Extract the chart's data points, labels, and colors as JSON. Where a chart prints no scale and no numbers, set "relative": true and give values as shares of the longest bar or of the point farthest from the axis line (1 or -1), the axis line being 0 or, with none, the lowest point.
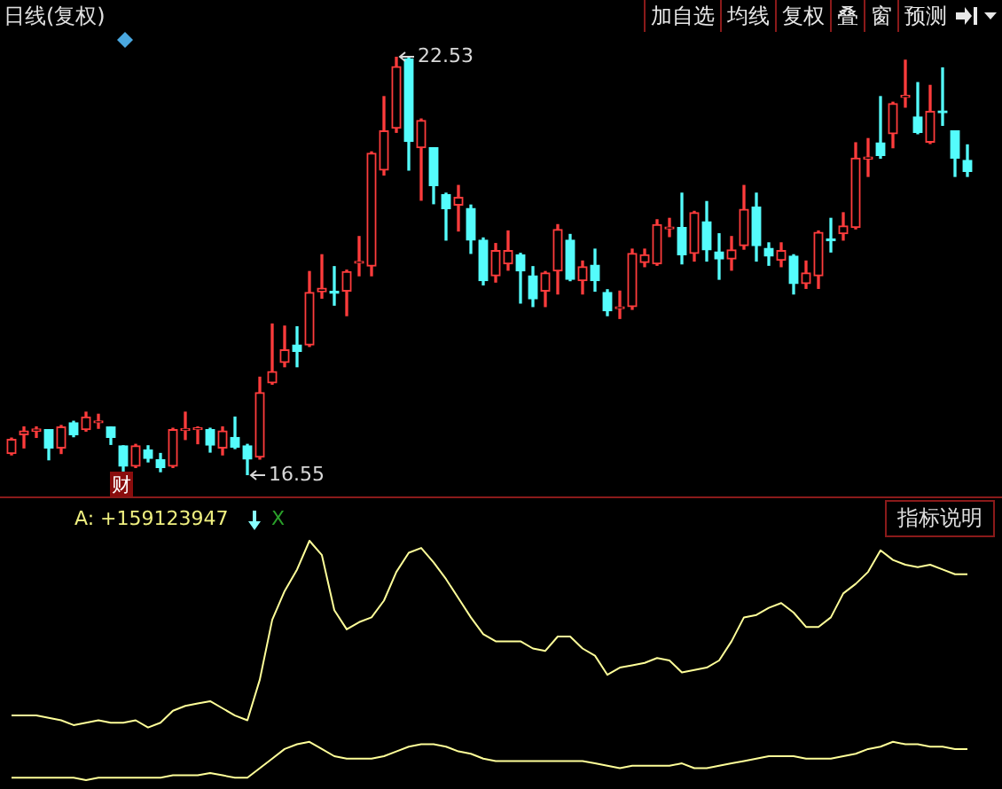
{
  "chart_data": [
    {
      "type": "candlestick",
      "title": "日线(复权)",
      "categories": [
        null,
        null,
        null,
        null,
        null,
        null,
        null,
        null,
        null,
        null,
        null,
        null,
        null,
        null,
        null,
        null,
        null,
        null,
        null,
        null,
        null,
        null,
        null,
        null,
        null,
        null,
        null,
        null,
        null,
        null,
        null,
        null,
        null,
        null,
        null,
        null,
        null,
        null,
        null,
        null,
        null,
        null,
        null,
        null,
        null,
        null,
        null,
        null,
        null,
        null,
        null,
        null,
        null,
        null,
        null,
        null,
        null,
        null,
        null,
        null,
        null,
        null,
        null,
        null,
        null,
        null,
        null,
        null,
        null,
        null,
        null,
        null,
        null,
        null,
        null,
        null,
        null,
        null
      ],
      "ohlc": [
        [
          16.86,
          17.08,
          16.84,
          17.06
        ],
        [
          17.13,
          17.24,
          16.94,
          17.18
        ],
        [
          17.18,
          17.24,
          17.09,
          17.21
        ],
        [
          17.2,
          17.2,
          16.77,
          16.94
        ],
        [
          16.94,
          17.26,
          16.86,
          17.24
        ],
        [
          17.3,
          17.32,
          17.1,
          17.13
        ],
        [
          17.2,
          17.45,
          17.18,
          17.38
        ],
        [
          17.3,
          17.42,
          17.22,
          17.32
        ],
        [
          17.24,
          17.24,
          16.99,
          17.09
        ],
        [
          16.97,
          16.97,
          16.61,
          16.68
        ],
        [
          16.68,
          16.99,
          16.66,
          16.97
        ],
        [
          16.91,
          16.97,
          16.74,
          16.79
        ],
        [
          16.77,
          16.86,
          16.6,
          16.66
        ],
        [
          16.68,
          17.22,
          16.66,
          17.2
        ],
        [
          17.19,
          17.45,
          17.06,
          17.21
        ],
        [
          17.2,
          17.24,
          17.0,
          17.21
        ],
        [
          17.2,
          17.22,
          16.88,
          16.98
        ],
        [
          16.94,
          17.24,
          16.84,
          17.18
        ],
        [
          17.09,
          17.38,
          16.93,
          16.95
        ],
        [
          16.97,
          16.99,
          16.55,
          16.78
        ],
        [
          16.81,
          17.95,
          16.78,
          17.73
        ],
        [
          17.87,
          18.71,
          17.85,
          18.03
        ],
        [
          18.16,
          18.68,
          18.1,
          18.34
        ],
        [
          18.41,
          18.67,
          18.1,
          18.32
        ],
        [
          18.41,
          19.46,
          18.39,
          19.16
        ],
        [
          19.17,
          19.7,
          19.08,
          19.22
        ],
        [
          19.17,
          19.53,
          18.98,
          19.15
        ],
        [
          19.18,
          19.48,
          18.83,
          19.46
        ],
        [
          19.58,
          19.96,
          19.4,
          19.6
        ],
        [
          19.54,
          21.17,
          19.4,
          21.15
        ],
        [
          20.91,
          21.96,
          20.84,
          21.47
        ],
        [
          21.51,
          22.53,
          21.45,
          22.39
        ],
        [
          22.5,
          22.52,
          20.91,
          21.32
        ],
        [
          21.23,
          21.64,
          20.48,
          21.62
        ],
        [
          21.23,
          21.23,
          20.43,
          20.69
        ],
        [
          20.56,
          20.58,
          19.91,
          20.36
        ],
        [
          20.41,
          20.69,
          20.04,
          20.52
        ],
        [
          20.36,
          20.41,
          19.72,
          19.91
        ],
        [
          19.91,
          19.94,
          19.27,
          19.33
        ],
        [
          19.4,
          19.86,
          19.31,
          19.76
        ],
        [
          19.57,
          20.04,
          19.48,
          19.76
        ],
        [
          19.7,
          19.72,
          19.01,
          19.47
        ],
        [
          19.4,
          19.53,
          18.96,
          19.07
        ],
        [
          19.18,
          19.46,
          18.96,
          19.44
        ],
        [
          19.47,
          20.13,
          19.14,
          20.06
        ],
        [
          19.91,
          19.99,
          19.33,
          19.35
        ],
        [
          19.33,
          19.61,
          19.14,
          19.53
        ],
        [
          19.55,
          19.78,
          19.18,
          19.33
        ],
        [
          19.16,
          19.2,
          18.83,
          18.9
        ],
        [
          18.93,
          19.18,
          18.79,
          18.95
        ],
        [
          18.96,
          19.78,
          18.92,
          19.72
        ],
        [
          19.59,
          19.78,
          19.53,
          19.7
        ],
        [
          19.57,
          20.2,
          19.55,
          20.13
        ],
        [
          20.07,
          20.22,
          19.96,
          20.09
        ],
        [
          20.09,
          20.58,
          19.57,
          19.7
        ],
        [
          19.72,
          20.32,
          19.61,
          20.3
        ],
        [
          20.17,
          20.46,
          19.61,
          19.77
        ],
        [
          19.74,
          20.0,
          19.35,
          19.64
        ],
        [
          19.64,
          19.96,
          19.48,
          19.77
        ],
        [
          19.83,
          20.69,
          19.78,
          20.35
        ],
        [
          20.38,
          20.58,
          19.61,
          19.83
        ],
        [
          19.79,
          19.87,
          19.55,
          19.68
        ],
        [
          19.62,
          19.87,
          19.53,
          19.76
        ],
        [
          19.68,
          19.7,
          19.14,
          19.29
        ],
        [
          19.29,
          19.61,
          19.22,
          19.44
        ],
        [
          19.4,
          20.04,
          19.22,
          20.02
        ],
        [
          19.92,
          20.22,
          19.74,
          19.9
        ],
        [
          20.0,
          20.3,
          19.91,
          20.11
        ],
        [
          20.09,
          21.3,
          20.07,
          21.08
        ],
        [
          21.07,
          21.36,
          20.82,
          21.08
        ],
        [
          21.3,
          21.96,
          21.08,
          21.12
        ],
        [
          21.43,
          21.88,
          21.23,
          21.86
        ],
        [
          21.95,
          22.48,
          21.81,
          21.96
        ],
        [
          21.67,
          22.16,
          21.43,
          21.45
        ],
        [
          21.31,
          22.12,
          21.29,
          21.75
        ],
        [
          21.75,
          22.37,
          21.55,
          21.73
        ],
        [
          21.47,
          21.47,
          20.82,
          21.08
        ],
        [
          21.05,
          21.27,
          20.82,
          20.89
        ]
      ],
      "colors": [
        "#ff3c3c",
        "#ff3c3c",
        "#ff3c3c",
        "#54fcfc",
        "#ff3c3c",
        "#54fcfc",
        "#ff3c3c",
        "#ff3c3c",
        "#54fcfc",
        "#54fcfc",
        "#ff3c3c",
        "#54fcfc",
        "#54fcfc",
        "#ff3c3c",
        "#ff3c3c",
        "#ff3c3c",
        "#54fcfc",
        "#ff3c3c",
        "#54fcfc",
        "#54fcfc",
        "#ff3c3c",
        "#ff3c3c",
        "#ff3c3c",
        "#54fcfc",
        "#ff3c3c",
        "#ff3c3c",
        "#54fcfc",
        "#ff3c3c",
        "#ff3c3c",
        "#ff3c3c",
        "#ff3c3c",
        "#ff3c3c",
        "#54fcfc",
        "#ff3c3c",
        "#54fcfc",
        "#54fcfc",
        "#ff3c3c",
        "#54fcfc",
        "#54fcfc",
        "#ff3c3c",
        "#ff3c3c",
        "#54fcfc",
        "#54fcfc",
        "#ff3c3c",
        "#ff3c3c",
        "#54fcfc",
        "#ff3c3c",
        "#54fcfc",
        "#54fcfc",
        "#ff3c3c",
        "#ff3c3c",
        "#ff3c3c",
        "#ff3c3c",
        "#ff3c3c",
        "#54fcfc",
        "#ff3c3c",
        "#54fcfc",
        "#54fcfc",
        "#ff3c3c",
        "#ff3c3c",
        "#54fcfc",
        "#54fcfc",
        "#ff3c3c",
        "#54fcfc",
        "#ff3c3c",
        "#ff3c3c",
        "#54fcfc",
        "#ff3c3c",
        "#ff3c3c",
        "#ff3c3c",
        "#54fcfc",
        "#ff3c3c",
        "#ff3c3c",
        "#54fcfc",
        "#ff3c3c",
        "#54fcfc",
        "#54fcfc",
        "#54fcfc"
      ],
      "annotations": [
        "22.53",
        "16.55",
        "财",
        "加自选",
        "均线",
        "复权",
        "叠",
        "窗",
        "预测"
      ]
    },
    {
      "type": "line",
      "title": "A: +159123947",
      "relative": true,
      "categories": [
        null,
        null,
        null,
        null,
        null,
        null,
        null,
        null,
        null,
        null,
        null,
        null,
        null,
        null,
        null,
        null,
        null,
        null,
        null,
        null,
        null,
        null,
        null,
        null,
        null,
        null,
        null,
        null,
        null,
        null,
        null,
        null,
        null,
        null,
        null,
        null,
        null,
        null,
        null,
        null,
        null,
        null,
        null,
        null,
        null,
        null,
        null,
        null,
        null,
        null,
        null,
        null,
        null,
        null,
        null,
        null,
        null,
        null,
        null,
        null,
        null,
        null,
        null,
        null,
        null,
        null,
        null,
        null,
        null,
        null,
        null,
        null,
        null,
        null,
        null,
        null,
        null,
        null
      ],
      "series": [
        {
          "color": "#ffff99",
          "values": [
            0.27,
            0.27,
            0.27,
            0.26,
            0.25,
            0.23,
            0.24,
            0.25,
            0.24,
            0.24,
            0.25,
            0.22,
            0.24,
            0.29,
            0.31,
            0.32,
            0.33,
            0.3,
            0.27,
            0.25,
            0.42,
            0.67,
            0.79,
            0.88,
            1,
            0.94,
            0.71,
            0.63,
            0.66,
            0.68,
            0.75,
            0.87,
            0.95,
            0.97,
            0.91,
            0.84,
            0.76,
            0.68,
            0.61,
            0.58,
            0.58,
            0.58,
            0.55,
            0.54,
            0.6,
            0.6,
            0.55,
            0.52,
            0.44,
            0.47,
            0.48,
            0.49,
            0.51,
            0.5,
            0.45,
            0.46,
            0.47,
            0.5,
            0.58,
            0.68,
            0.69,
            0.72,
            0.74,
            0.7,
            0.64,
            0.64,
            0.68,
            0.78,
            0.82,
            0.87,
            0.96,
            0.92,
            0.9,
            0.89,
            0.9,
            0.88,
            0.86,
            0.86
          ]
        },
        {
          "color": "#ffff99",
          "values": [
            0.01,
            0.01,
            0.01,
            0.01,
            0.01,
            0.01,
            0,
            0.01,
            0.01,
            0.01,
            0.01,
            0.01,
            0.01,
            0.02,
            0.02,
            0.02,
            0.03,
            0.02,
            0.01,
            0.01,
            0.05,
            0.09,
            0.13,
            0.15,
            0.16,
            0.13,
            0.1,
            0.09,
            0.09,
            0.09,
            0.1,
            0.12,
            0.14,
            0.15,
            0.15,
            0.14,
            0.12,
            0.11,
            0.09,
            0.08,
            0.08,
            0.08,
            0.08,
            0.08,
            0.08,
            0.08,
            0.08,
            0.07,
            0.06,
            0.05,
            0.06,
            0.06,
            0.06,
            0.06,
            0.07,
            0.05,
            0.05,
            0.06,
            0.07,
            0.08,
            0.09,
            0.1,
            0.1,
            0.1,
            0.09,
            0.09,
            0.09,
            0.1,
            0.11,
            0.13,
            0.14,
            0.16,
            0.15,
            0.15,
            0.14,
            0.14,
            0.13,
            0.13
          ]
        }
      ],
      "annotations": [
        "X",
        "指标说明"
      ]
    }
  ]
}
